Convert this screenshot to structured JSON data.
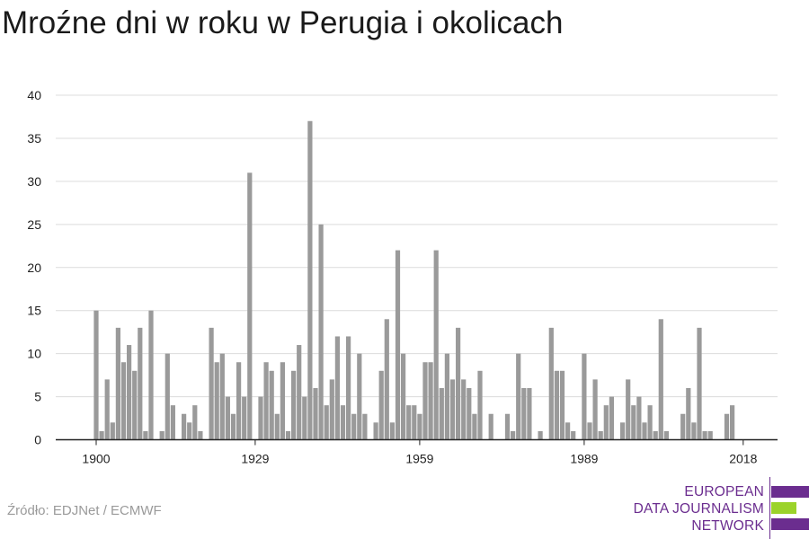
{
  "chart_data": {
    "type": "bar",
    "title": "Mroźne dni w roku w Perugia i okolicach",
    "x_start": 1900,
    "x_ticks": [
      1900,
      1929,
      1959,
      1989,
      2018
    ],
    "y_ticks": [
      0,
      5,
      10,
      15,
      20,
      25,
      30,
      35,
      40
    ],
    "ylim": [
      0,
      40
    ],
    "grid": true,
    "bar_color": "#9a9a9a",
    "values": [
      15,
      1,
      7,
      2,
      13,
      9,
      11,
      8,
      13,
      1,
      15,
      0,
      1,
      10,
      4,
      0,
      3,
      2,
      4,
      1,
      0,
      13,
      9,
      10,
      5,
      3,
      9,
      5,
      31,
      0,
      5,
      9,
      8,
      3,
      9,
      1,
      8,
      11,
      5,
      37,
      6,
      25,
      4,
      7,
      12,
      4,
      12,
      3,
      10,
      3,
      0,
      2,
      8,
      14,
      2,
      22,
      10,
      4,
      4,
      3,
      9,
      9,
      22,
      6,
      10,
      7,
      13,
      7,
      6,
      3,
      8,
      0,
      3,
      0,
      0,
      3,
      1,
      10,
      6,
      6,
      0,
      1,
      0,
      13,
      8,
      8,
      2,
      1,
      0,
      10,
      2,
      7,
      1,
      4,
      5,
      0,
      2,
      7,
      4,
      5,
      2,
      4,
      1,
      14,
      1,
      0,
      0,
      3,
      6,
      2,
      13,
      1,
      1,
      0,
      0,
      3,
      4
    ]
  },
  "footer": {
    "source": "Źródło: EDJNet / ECMWF",
    "logo_lines": [
      "EUROPEAN",
      "DATA JOURNALISM",
      "NETWORK"
    ],
    "logo_colors": {
      "purple": "#6b2d8f",
      "green": "#9bd32a"
    }
  }
}
